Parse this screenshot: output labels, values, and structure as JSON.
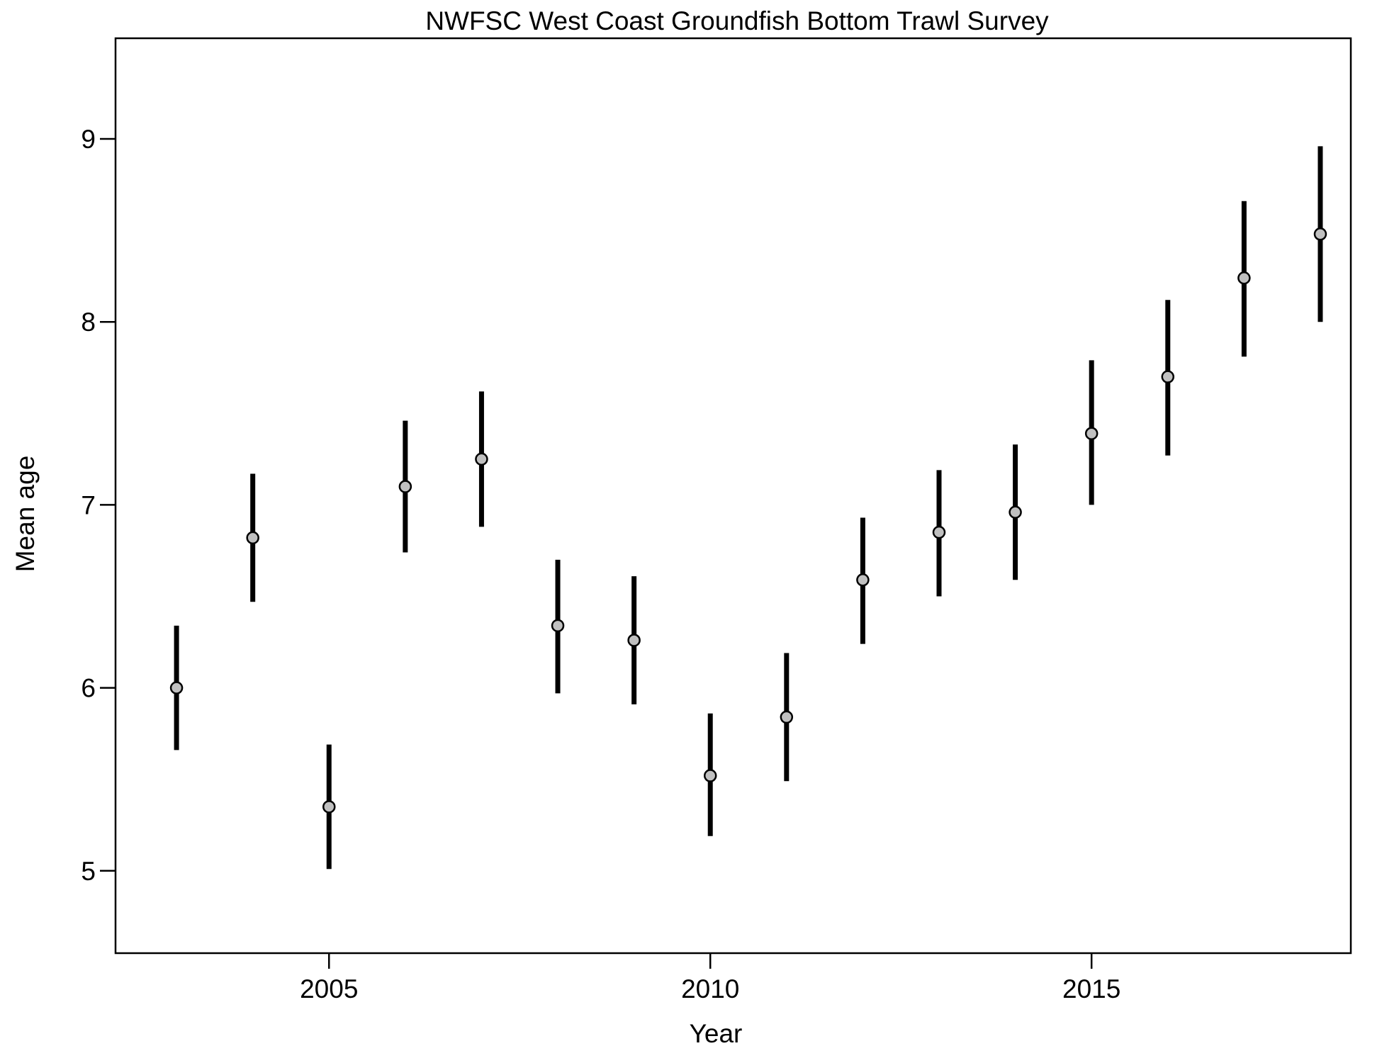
{
  "chart_data": {
    "type": "scatter",
    "title": "NWFSC West Coast Groundfish Bottom Trawl Survey",
    "xlabel": "Year",
    "ylabel": "Mean age",
    "xlim": [
      2002.2,
      2018.4
    ],
    "ylim": [
      4.55,
      9.55
    ],
    "x_ticks": [
      2005,
      2010,
      2015
    ],
    "y_ticks": [
      5,
      6,
      7,
      8,
      9
    ],
    "grid": false,
    "legend": "none",
    "colors": {
      "point_fill": "#c0c0c0",
      "point_stroke": "#000000",
      "error_bar": "#000000",
      "frame": "#000000"
    },
    "series": [
      {
        "x": [
          2003,
          2004,
          2005,
          2006,
          2007,
          2008,
          2009,
          2010,
          2011,
          2012,
          2013,
          2014,
          2015,
          2016,
          2017,
          2018
        ],
        "y": [
          6.0,
          6.82,
          5.35,
          7.1,
          7.25,
          6.34,
          6.26,
          5.52,
          5.84,
          6.59,
          6.85,
          6.96,
          7.39,
          7.7,
          8.24,
          8.48
        ],
        "lower": [
          5.66,
          6.47,
          5.01,
          6.74,
          6.88,
          5.97,
          5.91,
          5.19,
          5.49,
          6.24,
          6.5,
          6.59,
          7.0,
          7.27,
          7.81,
          8.0
        ],
        "upper": [
          6.34,
          7.17,
          5.69,
          7.46,
          7.62,
          6.7,
          6.61,
          5.86,
          6.19,
          6.93,
          7.19,
          7.33,
          7.79,
          8.12,
          8.66,
          8.96
        ]
      }
    ]
  }
}
